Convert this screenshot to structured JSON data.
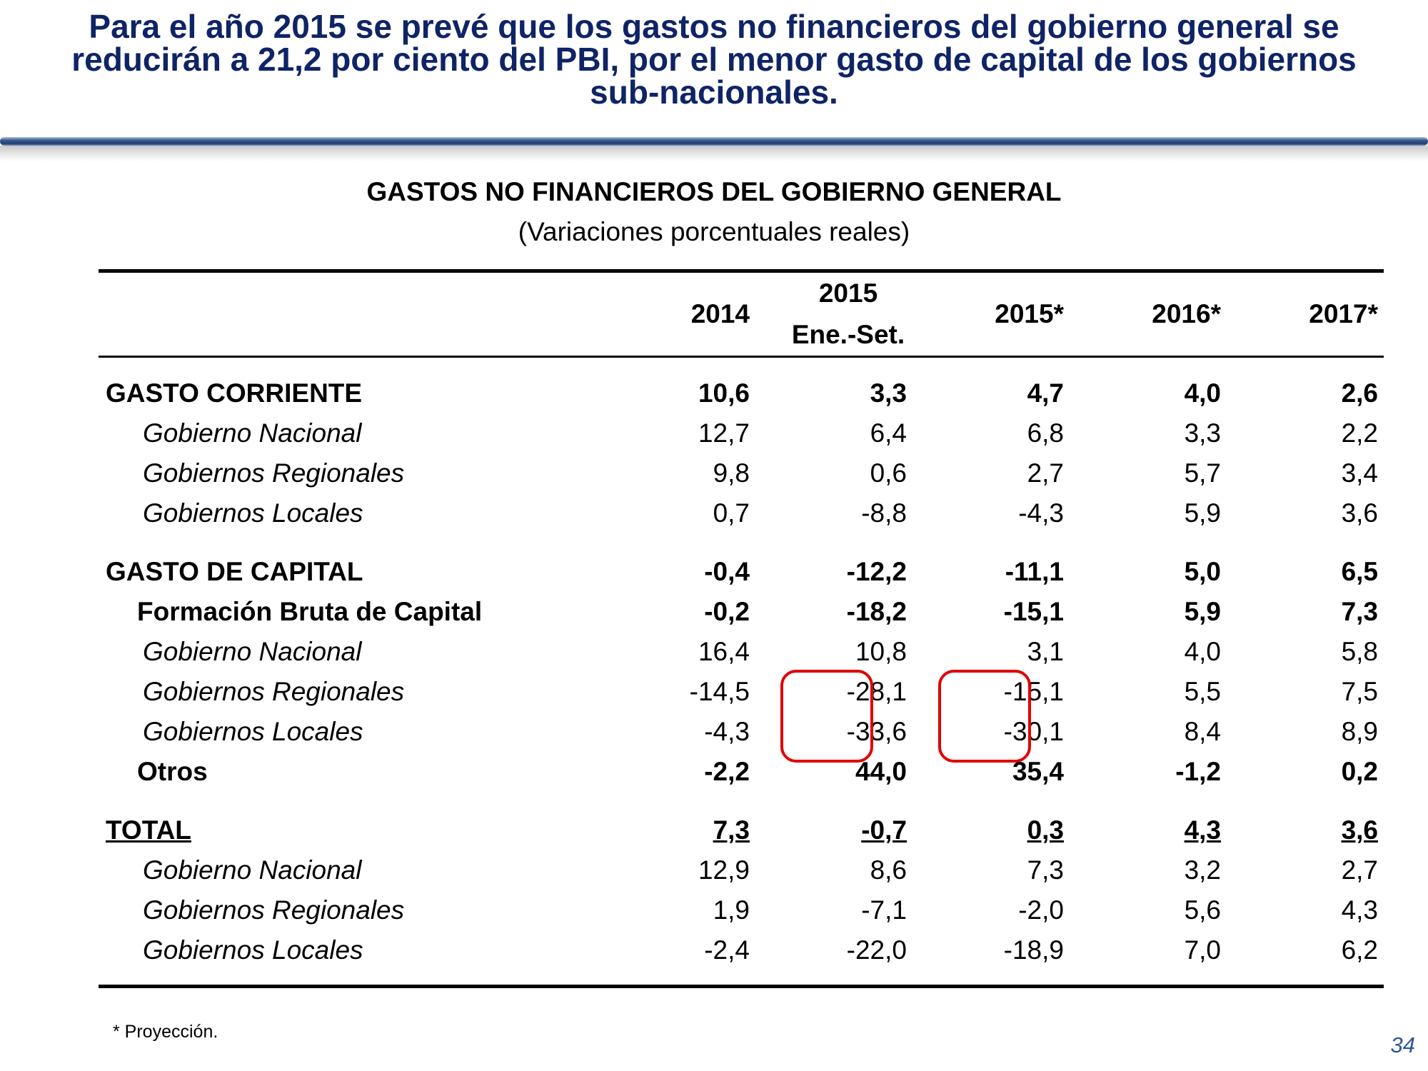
{
  "slide": {
    "title_lines": [
      "Para el año 2015 se prevé que los gastos no financieros del gobierno general se",
      "reducirán a 21,2 por ciento del PBI, por el menor gasto de capital de los gobiernos",
      "sub-nacionales."
    ],
    "footnote": "* Proyección.",
    "page_number": "34"
  },
  "table": {
    "title": "GASTOS NO FINANCIEROS DEL GOBIERNO GENERAL",
    "subtitle": "(Variaciones porcentuales reales)",
    "headers": {
      "c2014": "2014",
      "c2015_ene_line1": "2015",
      "c2015_ene_line2": "Ene.-Set.",
      "c2015p": "2015*",
      "c2016p": "2016*",
      "c2017p": "2017*"
    },
    "rows": [
      {
        "label": "GASTO CORRIENTE",
        "values": [
          "10,6",
          "3,3",
          "4,7",
          "4,0",
          "2,6"
        ]
      },
      {
        "label": "Gobierno Nacional",
        "values": [
          "12,7",
          "6,4",
          "6,8",
          "3,3",
          "2,2"
        ]
      },
      {
        "label": "Gobiernos Regionales",
        "values": [
          "9,8",
          "0,6",
          "2,7",
          "5,7",
          "3,4"
        ]
      },
      {
        "label": "Gobiernos Locales",
        "values": [
          "0,7",
          "-8,8",
          "-4,3",
          "5,9",
          "3,6"
        ]
      },
      {
        "label": "GASTO DE CAPITAL",
        "values": [
          "-0,4",
          "-12,2",
          "-11,1",
          "5,0",
          "6,5"
        ]
      },
      {
        "label": "Formación Bruta de Capital",
        "values": [
          "-0,2",
          "-18,2",
          "-15,1",
          "5,9",
          "7,3"
        ]
      },
      {
        "label": "Gobierno Nacional",
        "values": [
          "16,4",
          "10,8",
          "3,1",
          "4,0",
          "5,8"
        ]
      },
      {
        "label": "Gobiernos Regionales",
        "values": [
          "-14,5",
          "-28,1",
          "-15,1",
          "5,5",
          "7,5"
        ]
      },
      {
        "label": "Gobiernos Locales",
        "values": [
          "-4,3",
          "-33,6",
          "-30,1",
          "8,4",
          "8,9"
        ]
      },
      {
        "label": "Otros",
        "values": [
          "-2,2",
          "44,0",
          "35,4",
          "-1,2",
          "0,2"
        ]
      },
      {
        "label": "TOTAL",
        "values": [
          "7,3",
          "-0,7",
          "0,3",
          "4,3",
          "3,6"
        ]
      },
      {
        "label": "Gobierno Nacional",
        "values": [
          "12,9",
          "8,6",
          "7,3",
          "3,2",
          "2,7"
        ]
      },
      {
        "label": "Gobiernos Regionales",
        "values": [
          "1,9",
          "-7,1",
          "-2,0",
          "5,6",
          "4,3"
        ]
      },
      {
        "label": "Gobiernos Locales",
        "values": [
          "-2,4",
          "-22,0",
          "-18,9",
          "7,0",
          "6,2"
        ]
      }
    ]
  },
  "colors": {
    "title": "#0f2466",
    "highlight": "#e00000",
    "page_number": "#2f5597"
  }
}
